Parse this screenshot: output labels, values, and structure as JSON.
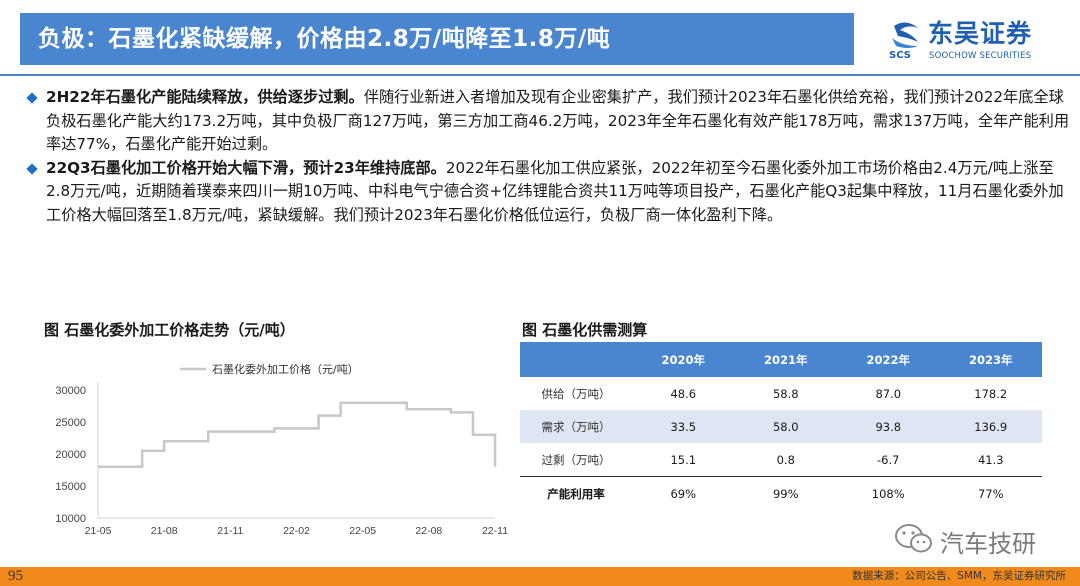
{
  "header": {
    "title": "负极：石墨化紧缺缓解，价格由2.8万/吨降至1.8万/吨",
    "logo_cn": "东吴证券",
    "logo_en": "SOOCHOW SECURITIES",
    "logo_mark_text": "SCS",
    "brand_color": "#4a86cf"
  },
  "bullets": [
    {
      "bold": "2H22年石墨化产能陆续释放，供给逐步过剩。",
      "text": "伴随行业新进入者增加及现有企业密集扩产，我们预计2023年石墨化供给充裕，我们预计2022年底全球负极石墨化产能大约173.2万吨，其中负极厂商127万吨，第三方加工商46.2万吨，2023年全年石墨化有效产能178万吨，需求137万吨，全年产能利用率达77%，石墨化产能开始过剩。"
    },
    {
      "bold": "22Q3石墨化加工价格开始大幅下滑，预计23年维持底部。",
      "text": "2022年石墨化加工供应紧张，2022年初至今石墨化委外加工市场价格由2.4万元/吨上涨至2.8万元/吨，近期随着璞泰来四川一期10万吨、中科电气宁德合资+亿纬锂能合资共11万吨等项目投产，石墨化产能Q3起集中释放，11月石墨化委外加工价格大幅回落至1.8万元/吨，紧缺缓解。我们预计2023年石墨化价格低位运行，负极厂商一体化盈利下降。"
    }
  ],
  "chart_caption": "图 石墨化委外加工价格走势（元/吨）",
  "chart_data": {
    "type": "line",
    "title": "",
    "xlabel": "",
    "ylabel": "",
    "legend": "top-left",
    "grid": false,
    "ylim": [
      10000,
      30000
    ],
    "yticks": [
      10000,
      15000,
      20000,
      25000,
      30000
    ],
    "xtick_labels": [
      "21-05",
      "21-08",
      "21-11",
      "22-02",
      "22-05",
      "22-08",
      "22-11"
    ],
    "series": [
      {
        "name": "石墨化委外加工价格（元/吨）",
        "color": "#c8c8c8",
        "x": [
          "21-05",
          "21-06",
          "21-07",
          "21-08",
          "21-09",
          "21-10",
          "21-11",
          "21-12",
          "22-01",
          "22-02",
          "22-03",
          "22-04",
          "22-05",
          "22-06",
          "22-07",
          "22-08",
          "22-09",
          "22-10",
          "22-10",
          "22-11",
          "22-11"
        ],
        "values": [
          18000,
          18000,
          20500,
          22000,
          22000,
          23500,
          23500,
          23500,
          24000,
          24000,
          26000,
          28000,
          28000,
          28000,
          27000,
          27000,
          26500,
          25500,
          23000,
          23000,
          18000
        ]
      }
    ]
  },
  "table_caption": "图 石墨化供需测算",
  "table": {
    "headers": [
      "",
      "2020年",
      "2021年",
      "2022年",
      "2023年"
    ],
    "rows": [
      {
        "label": "供给（万吨）",
        "values": [
          "48.6",
          "58.8",
          "87.0",
          "178.2"
        ]
      },
      {
        "label": "需求（万吨）",
        "values": [
          "33.5",
          "58.0",
          "93.8",
          "136.9"
        ]
      },
      {
        "label": "过剩（万吨）",
        "values": [
          "15.1",
          "0.8",
          "-6.7",
          "41.3"
        ]
      },
      {
        "label": "产能利用率",
        "values": [
          "69%",
          "99%",
          "108%",
          "77%"
        ]
      }
    ]
  },
  "watermark": "汽车技研",
  "footer": {
    "page_number": "95",
    "source": "数据来源：公司公告、SMM，东吴证券研究所",
    "color": "#f08a1c"
  }
}
